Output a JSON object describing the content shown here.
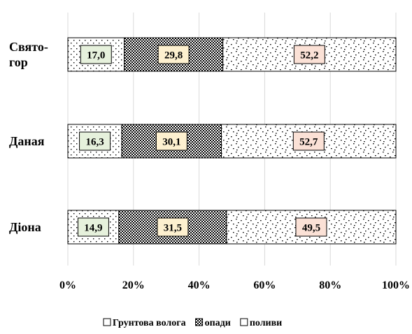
{
  "chart_data": {
    "type": "bar",
    "orientation": "horizontal",
    "stacked": "percent",
    "categories": [
      "Свято-\nгор",
      "Даная",
      "Діона"
    ],
    "series": [
      {
        "name": "Грунтова волога",
        "values": [
          17.0,
          16.3,
          14.9
        ],
        "labels": [
          "17,0",
          "16,3",
          "14,9"
        ],
        "pattern": "dots",
        "label_bg": "#e6f1dc"
      },
      {
        "name": "опади",
        "values": [
          29.8,
          30.1,
          31.5
        ],
        "labels": [
          "29,8",
          "30,1",
          "31,5"
        ],
        "pattern": "checker",
        "label_bg": "#fdf0cf"
      },
      {
        "name": "поливи",
        "values": [
          52.2,
          52.7,
          49.5
        ],
        "labels": [
          "52,2",
          "52,7",
          "49,5"
        ],
        "pattern": "scatter",
        "label_bg": "#fbe1d6"
      }
    ],
    "x_ticks": [
      "0%",
      "20%",
      "40%",
      "60%",
      "80%",
      "100%"
    ],
    "xlim": [
      0,
      100
    ],
    "grid": "vertical",
    "legend_position": "bottom",
    "title": "",
    "xlabel": "",
    "ylabel": ""
  }
}
